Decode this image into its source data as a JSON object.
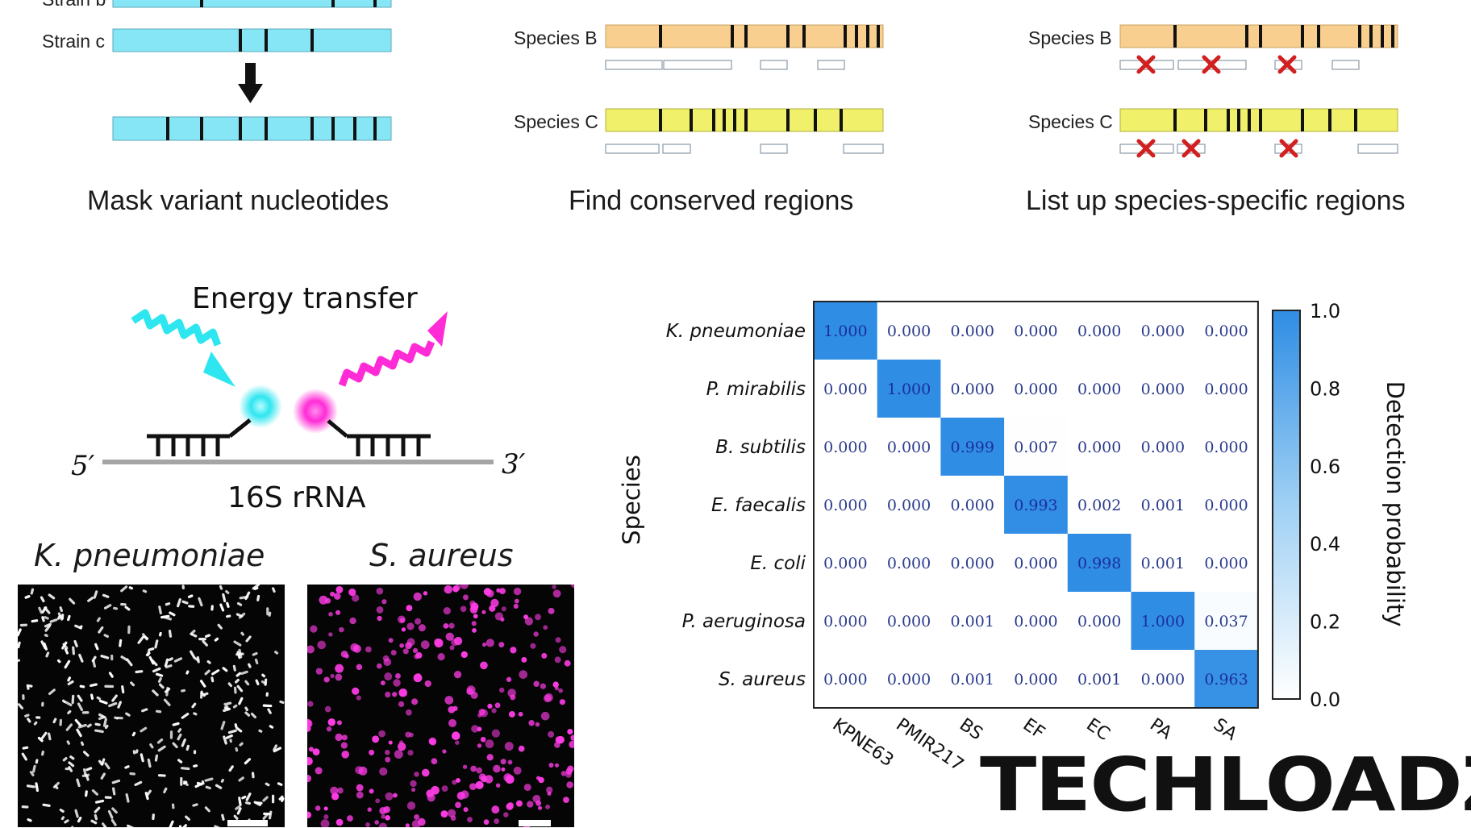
{
  "panels": {
    "mask": {
      "strain_b_label": "Strain b",
      "strain_c_label": "Strain c",
      "caption": "Mask variant nucleotides"
    },
    "conserved": {
      "species_b_label": "Species B",
      "species_c_label": "Species C",
      "caption": "Find conserved regions"
    },
    "specific": {
      "species_b_label": "Species B",
      "species_c_label": "Species C",
      "caption": "List up species-specific regions"
    }
  },
  "fret": {
    "energy_label": "Energy transfer",
    "five_prime": "5′",
    "three_prime": "3′",
    "rrna_label": "16S rRNA",
    "donor_color": "#2ee6f0",
    "acceptor_color": "#ff2bd6"
  },
  "micrographs": {
    "left_title": "K. pneumoniae",
    "right_title": "S. aureus",
    "left_color": "#ffffff",
    "right_color": "#ff3ce6"
  },
  "colors": {
    "strain_fill": "#86e6f6",
    "species_b_fill": "#f8cf8e",
    "species_c_fill": "#f0f06a",
    "heat_max": "#2f8de4",
    "cell_text": "#2a3a8c"
  },
  "chart_data": {
    "type": "heatmap",
    "ylabel": "Species",
    "colorbar_label": "Detection probability",
    "colorbar_ticks": [
      "1.0",
      "0.8",
      "0.6",
      "0.4",
      "0.2",
      "0.0"
    ],
    "vlim": [
      0,
      1
    ],
    "rows": [
      "K. pneumoniae",
      "P. mirabilis",
      "B. subtilis",
      "E. faecalis",
      "E. coli",
      "P. aeruginosa",
      "S. aureus"
    ],
    "columns": [
      "KPNE63",
      "PMIR217",
      "BS",
      "EF",
      "EC",
      "PA",
      "SA"
    ],
    "values": [
      [
        1.0,
        0.0,
        0.0,
        0.0,
        0.0,
        0.0,
        0.0
      ],
      [
        0.0,
        1.0,
        0.0,
        0.0,
        0.0,
        0.0,
        0.0
      ],
      [
        0.0,
        0.0,
        0.999,
        0.007,
        0.0,
        0.0,
        0.0
      ],
      [
        0.0,
        0.0,
        0.0,
        0.993,
        0.002,
        0.001,
        0.0
      ],
      [
        0.0,
        0.0,
        0.0,
        0.0,
        0.998,
        0.001,
        0.0
      ],
      [
        0.0,
        0.0,
        0.001,
        0.0,
        0.0,
        1.0,
        0.037
      ],
      [
        0.0,
        0.0,
        0.001,
        0.0,
        0.001,
        0.0,
        0.963
      ]
    ],
    "value_labels": [
      [
        "1.000",
        "0.000",
        "0.000",
        "0.000",
        "0.000",
        "0.000",
        "0.000"
      ],
      [
        "0.000",
        "1.000",
        "0.000",
        "0.000",
        "0.000",
        "0.000",
        "0.000"
      ],
      [
        "0.000",
        "0.000",
        "0.999",
        "0.007",
        "0.000",
        "0.000",
        "0.000"
      ],
      [
        "0.000",
        "0.000",
        "0.000",
        "0.993",
        "0.002",
        "0.001",
        "0.000"
      ],
      [
        "0.000",
        "0.000",
        "0.000",
        "0.000",
        "0.998",
        "0.001",
        "0.000"
      ],
      [
        "0.000",
        "0.000",
        "0.001",
        "0.000",
        "0.000",
        "1.000",
        "0.037"
      ],
      [
        "0.000",
        "0.000",
        "0.001",
        "0.000",
        "0.001",
        "0.000",
        "0.963"
      ]
    ]
  },
  "watermark": {
    "text": "TECHLOADZ"
  }
}
